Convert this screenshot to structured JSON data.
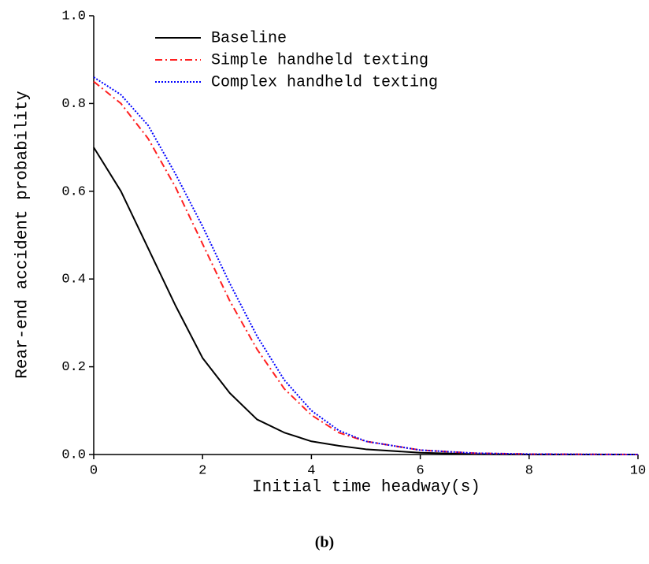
{
  "chart_data": {
    "type": "line",
    "xlabel": "Initial time headway(s)",
    "ylabel": "Rear-end accident probability",
    "caption": "(b)",
    "x": [
      0,
      0.5,
      1,
      1.5,
      2,
      2.5,
      3,
      3.5,
      4,
      4.5,
      5,
      6,
      7,
      8,
      10
    ],
    "series": [
      {
        "name": "Baseline",
        "color": "#000000",
        "dash": "solid",
        "values": [
          0.7,
          0.6,
          0.47,
          0.34,
          0.22,
          0.14,
          0.08,
          0.05,
          0.03,
          0.02,
          0.012,
          0.004,
          0.001,
          0,
          0
        ]
      },
      {
        "name": "Simple handheld texting",
        "color": "#ff2020",
        "dash": "dashdot",
        "values": [
          0.85,
          0.8,
          0.72,
          0.61,
          0.48,
          0.35,
          0.24,
          0.15,
          0.09,
          0.05,
          0.03,
          0.01,
          0.003,
          0.001,
          0
        ]
      },
      {
        "name": "Complex handheld texting",
        "color": "#0000ff",
        "dash": "dotted",
        "values": [
          0.86,
          0.82,
          0.75,
          0.64,
          0.52,
          0.39,
          0.27,
          0.17,
          0.1,
          0.055,
          0.03,
          0.01,
          0.003,
          0.001,
          0
        ]
      }
    ],
    "xlim": [
      0,
      10
    ],
    "xticks": [
      0,
      2,
      4,
      6,
      8,
      10
    ],
    "ylim": [
      0,
      1.0
    ],
    "yticks": [
      {
        "value": 0,
        "label": "0.0"
      },
      0.2,
      0.4,
      0.6,
      0.8,
      {
        "value": 1.0,
        "label": "1.0"
      }
    ],
    "legend": "upper center",
    "grid": false
  }
}
